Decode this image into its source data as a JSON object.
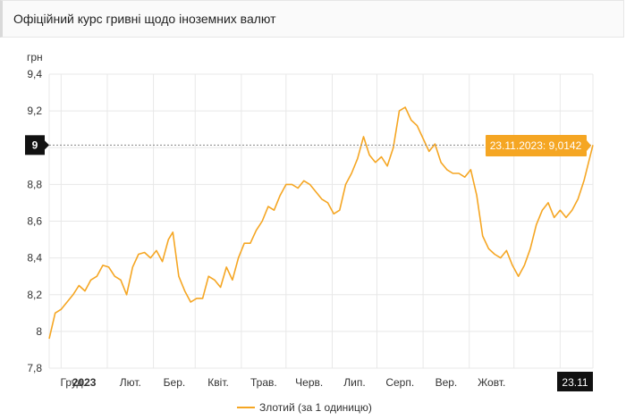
{
  "header": {
    "title": "Офіційний курс гривні щодо іноземних валют"
  },
  "colors": {
    "series": "#f5a623",
    "grid": "#e8e8e8",
    "tooltip_bg": "#f5a623",
    "marker_bg": "#111111"
  },
  "chart_data": {
    "type": "line",
    "ylabel": "грн",
    "ylim": [
      7.8,
      9.4
    ],
    "y_ticks": [
      "7,8",
      "8",
      "8,2",
      "8,4",
      "8,6",
      "8,8",
      "9",
      "9,2",
      "9,4"
    ],
    "y_tick_values": [
      7.8,
      8.0,
      8.2,
      8.4,
      8.6,
      8.8,
      9.0,
      9.2,
      9.4
    ],
    "x_ticks": [
      {
        "label": "Груд.",
        "bold": false
      },
      {
        "label": "2023",
        "bold": true
      },
      {
        "label": "Лют.",
        "bold": false
      },
      {
        "label": "Бер.",
        "bold": false
      },
      {
        "label": "Квіт.",
        "bold": false
      },
      {
        "label": "Трав.",
        "bold": false
      },
      {
        "label": "Черв.",
        "bold": false
      },
      {
        "label": "Лип.",
        "bold": false
      },
      {
        "label": "Серп.",
        "bold": false
      },
      {
        "label": "Вер.",
        "bold": false
      },
      {
        "label": "Жовт.",
        "bold": false
      }
    ],
    "x_range_start": "2022-11-23",
    "x_range_end": "2023-11-23",
    "crosshair_value": "9",
    "crosshair_x_label": "23.11",
    "tooltip": "23.11.2023: 9,0142",
    "series": [
      {
        "name": "Злотий (за 1 одиницю)",
        "points": [
          [
            "2022-11-23",
            7.96
          ],
          [
            "2022-11-27",
            8.1
          ],
          [
            "2022-12-01",
            8.12
          ],
          [
            "2022-12-05",
            8.16
          ],
          [
            "2022-12-09",
            8.2
          ],
          [
            "2022-12-13",
            8.25
          ],
          [
            "2022-12-17",
            8.22
          ],
          [
            "2022-12-21",
            8.28
          ],
          [
            "2022-12-25",
            8.3
          ],
          [
            "2022-12-29",
            8.36
          ],
          [
            "2023-01-02",
            8.35
          ],
          [
            "2023-01-06",
            8.3
          ],
          [
            "2023-01-10",
            8.28
          ],
          [
            "2023-01-14",
            8.2
          ],
          [
            "2023-01-18",
            8.35
          ],
          [
            "2023-01-22",
            8.42
          ],
          [
            "2023-01-26",
            8.43
          ],
          [
            "2023-01-30",
            8.4
          ],
          [
            "2023-02-03",
            8.44
          ],
          [
            "2023-02-07",
            8.38
          ],
          [
            "2023-02-11",
            8.5
          ],
          [
            "2023-02-14",
            8.54
          ],
          [
            "2023-02-18",
            8.3
          ],
          [
            "2023-02-22",
            8.22
          ],
          [
            "2023-02-26",
            8.16
          ],
          [
            "2023-03-02",
            8.18
          ],
          [
            "2023-03-06",
            8.18
          ],
          [
            "2023-03-10",
            8.3
          ],
          [
            "2023-03-14",
            8.28
          ],
          [
            "2023-03-18",
            8.24
          ],
          [
            "2023-03-22",
            8.35
          ],
          [
            "2023-03-26",
            8.28
          ],
          [
            "2023-03-30",
            8.4
          ],
          [
            "2023-04-03",
            8.48
          ],
          [
            "2023-04-07",
            8.48
          ],
          [
            "2023-04-11",
            8.55
          ],
          [
            "2023-04-15",
            8.6
          ],
          [
            "2023-04-19",
            8.68
          ],
          [
            "2023-04-23",
            8.66
          ],
          [
            "2023-04-27",
            8.74
          ],
          [
            "2023-05-01",
            8.8
          ],
          [
            "2023-05-05",
            8.8
          ],
          [
            "2023-05-09",
            8.78
          ],
          [
            "2023-05-13",
            8.82
          ],
          [
            "2023-05-17",
            8.8
          ],
          [
            "2023-05-21",
            8.76
          ],
          [
            "2023-05-25",
            8.72
          ],
          [
            "2023-05-29",
            8.7
          ],
          [
            "2023-06-02",
            8.64
          ],
          [
            "2023-06-06",
            8.66
          ],
          [
            "2023-06-10",
            8.8
          ],
          [
            "2023-06-14",
            8.86
          ],
          [
            "2023-06-18",
            8.94
          ],
          [
            "2023-06-22",
            9.06
          ],
          [
            "2023-06-26",
            8.96
          ],
          [
            "2023-06-30",
            8.92
          ],
          [
            "2023-07-04",
            8.95
          ],
          [
            "2023-07-08",
            8.9
          ],
          [
            "2023-07-12",
            9.0
          ],
          [
            "2023-07-16",
            9.2
          ],
          [
            "2023-07-20",
            9.22
          ],
          [
            "2023-07-24",
            9.15
          ],
          [
            "2023-07-28",
            9.12
          ],
          [
            "2023-08-01",
            9.05
          ],
          [
            "2023-08-05",
            8.98
          ],
          [
            "2023-08-09",
            9.02
          ],
          [
            "2023-08-13",
            8.92
          ],
          [
            "2023-08-17",
            8.88
          ],
          [
            "2023-08-21",
            8.86
          ],
          [
            "2023-08-25",
            8.86
          ],
          [
            "2023-08-29",
            8.84
          ],
          [
            "2023-09-02",
            8.88
          ],
          [
            "2023-09-06",
            8.74
          ],
          [
            "2023-09-10",
            8.52
          ],
          [
            "2023-09-14",
            8.45
          ],
          [
            "2023-09-18",
            8.42
          ],
          [
            "2023-09-22",
            8.4
          ],
          [
            "2023-09-26",
            8.44
          ],
          [
            "2023-09-30",
            8.36
          ],
          [
            "2023-10-04",
            8.3
          ],
          [
            "2023-10-08",
            8.36
          ],
          [
            "2023-10-12",
            8.45
          ],
          [
            "2023-10-16",
            8.58
          ],
          [
            "2023-10-20",
            8.66
          ],
          [
            "2023-10-24",
            8.7
          ],
          [
            "2023-10-28",
            8.62
          ],
          [
            "2023-11-01",
            8.66
          ],
          [
            "2023-11-05",
            8.62
          ],
          [
            "2023-11-09",
            8.66
          ],
          [
            "2023-11-13",
            8.72
          ],
          [
            "2023-11-17",
            8.82
          ],
          [
            "2023-11-23",
            9.0142
          ]
        ]
      }
    ],
    "legend_position": "bottom-center",
    "grid": true
  }
}
